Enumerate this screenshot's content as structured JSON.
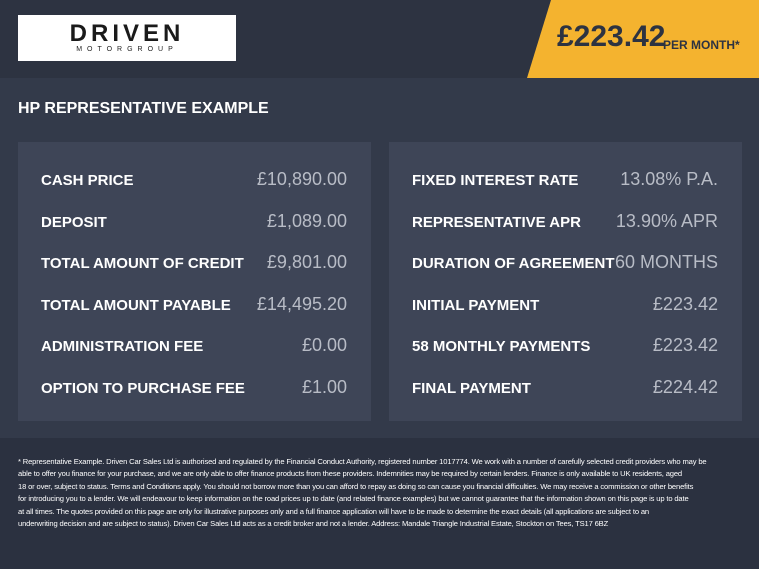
{
  "header": {
    "logo": {
      "name": "DRIVEN",
      "tagline": "MOTORGROUP"
    },
    "price": "£223.42",
    "price_suffix": "PER MONTH*"
  },
  "section_title": "HP REPRESENTATIVE EXAMPLE",
  "panels": [
    {
      "rows": [
        {
          "label": "CASH PRICE",
          "value": "£10,890.00"
        },
        {
          "label": "DEPOSIT",
          "value": "£1,089.00"
        },
        {
          "label": "TOTAL AMOUNT OF CREDIT",
          "value": "£9,801.00"
        },
        {
          "label": "TOTAL AMOUNT PAYABLE",
          "value": "£14,495.20"
        },
        {
          "label": "ADMINISTRATION FEE",
          "value": "£0.00"
        },
        {
          "label": "OPTION TO PURCHASE FEE",
          "value": "£1.00"
        }
      ]
    },
    {
      "rows": [
        {
          "label": "FIXED INTEREST RATE",
          "value": "13.08% P.A."
        },
        {
          "label": "REPRESENTATIVE APR",
          "value": "13.90% APR"
        },
        {
          "label": "DURATION OF AGREEMENT",
          "value": "60 MONTHS"
        },
        {
          "label": "INITIAL PAYMENT",
          "value": "£223.42"
        },
        {
          "label": "58 MONTHLY PAYMENTS",
          "value": "£223.42"
        },
        {
          "label": "FINAL PAYMENT",
          "value": "£224.42"
        }
      ]
    }
  ],
  "footer": {
    "lines": [
      "* Representative Example. Driven Car Sales Ltd is authorised and regulated by the Financial Conduct Authority, registered number 1017774. We work with a number of carefully selected credit providers who may be",
      "able to offer you finance for your purchase, and we are only able to offer finance products from these providers. Indemnities may be required by certain lenders. Finance is only available to UK residents, aged",
      "18 or over, subject to status. Terms and Conditions apply. You should not borrow more than you can afford to repay as doing so can cause you financial difficulties. We may receive a commission or other benefits",
      "for introducing you to a lender. We will endeavour to keep information on the road prices up to date (and related finance examples) but we cannot guarantee that the information shown on this page is up to date",
      "at all times. The quotes provided on this page are only for illustrative purposes only and a full finance application will have to be made to determine the exact details (all applications are subject to an",
      "underwriting decision and are subject to status). Driven Car Sales Ltd acts as a credit broker and not a lender. Address: Mandale Triangle Industrial Estate, Stockton on Tees, TS17 6BZ"
    ]
  }
}
